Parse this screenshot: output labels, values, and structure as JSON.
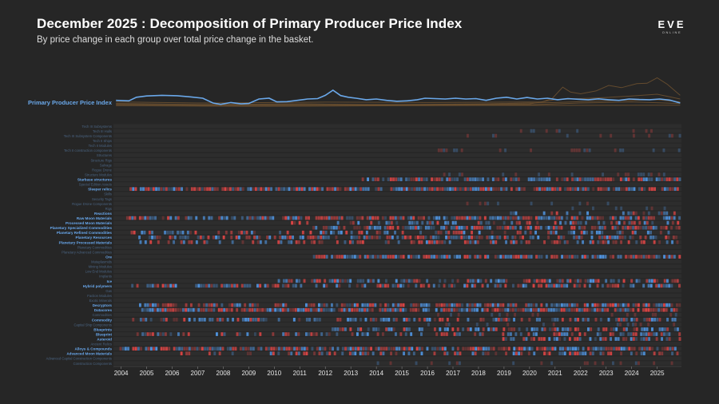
{
  "header": {
    "title": "December 2025 : Decomposition of Primary Producer Price Index",
    "subtitle": "By price change in each group over total price change in the basket."
  },
  "logo": {
    "text": "EVE",
    "subtext": "ONLINE"
  },
  "colors": {
    "background": "#262626",
    "index_line": "#6aa8ea",
    "bg_series": "#6b5030",
    "positive": "#4f93de",
    "negative": "#d94444",
    "row_label": "#4a6482",
    "row_label_strong": "#6aaaf0"
  },
  "chart_data": {
    "type": "line+heatmap",
    "title": "December 2025 : Decomposition of Primary Producer Price Index",
    "subtitle": "By price change in each group over total price change in the basket.",
    "index_series_name": "Primary Producer Price Index",
    "x_range": [
      2003.7,
      2025.95
    ],
    "x_ticks": [
      "2004",
      "2005",
      "2006",
      "2007",
      "2008",
      "2009",
      "2010",
      "2011",
      "2012",
      "2013",
      "2014",
      "2015",
      "2016",
      "2017",
      "2018",
      "2019",
      "2020",
      "2021",
      "2022",
      "2023",
      "2024",
      "2025"
    ],
    "index_line": [
      [
        2003.8,
        0.52
      ],
      [
        2004.3,
        0.5
      ],
      [
        2004.6,
        0.66
      ],
      [
        2005.0,
        0.72
      ],
      [
        2005.6,
        0.75
      ],
      [
        2006.2,
        0.73
      ],
      [
        2006.7,
        0.68
      ],
      [
        2007.2,
        0.62
      ],
      [
        2007.6,
        0.4
      ],
      [
        2007.9,
        0.34
      ],
      [
        2008.3,
        0.42
      ],
      [
        2008.7,
        0.36
      ],
      [
        2009.0,
        0.38
      ],
      [
        2009.4,
        0.58
      ],
      [
        2009.8,
        0.62
      ],
      [
        2010.1,
        0.45
      ],
      [
        2010.5,
        0.46
      ],
      [
        2010.9,
        0.52
      ],
      [
        2011.3,
        0.58
      ],
      [
        2011.7,
        0.6
      ],
      [
        2012.0,
        0.75
      ],
      [
        2012.3,
        0.98
      ],
      [
        2012.6,
        0.74
      ],
      [
        2012.9,
        0.66
      ],
      [
        2013.2,
        0.62
      ],
      [
        2013.6,
        0.55
      ],
      [
        2014.0,
        0.58
      ],
      [
        2014.4,
        0.52
      ],
      [
        2014.8,
        0.48
      ],
      [
        2015.2,
        0.5
      ],
      [
        2015.6,
        0.55
      ],
      [
        2015.9,
        0.62
      ],
      [
        2016.3,
        0.6
      ],
      [
        2016.7,
        0.58
      ],
      [
        2017.1,
        0.62
      ],
      [
        2017.5,
        0.58
      ],
      [
        2017.9,
        0.6
      ],
      [
        2018.3,
        0.52
      ],
      [
        2018.7,
        0.62
      ],
      [
        2019.1,
        0.66
      ],
      [
        2019.5,
        0.58
      ],
      [
        2019.9,
        0.65
      ],
      [
        2020.3,
        0.58
      ],
      [
        2020.7,
        0.62
      ],
      [
        2021.1,
        0.55
      ],
      [
        2021.5,
        0.6
      ],
      [
        2021.9,
        0.57
      ],
      [
        2022.3,
        0.55
      ],
      [
        2022.7,
        0.59
      ],
      [
        2023.1,
        0.55
      ],
      [
        2023.5,
        0.52
      ],
      [
        2023.9,
        0.58
      ],
      [
        2024.3,
        0.56
      ],
      [
        2024.7,
        0.55
      ],
      [
        2025.1,
        0.58
      ],
      [
        2025.5,
        0.53
      ],
      [
        2025.9,
        0.4
      ]
    ],
    "background_lines": [
      [
        [
          2003.8,
          0.45
        ],
        [
          2007.0,
          0.4
        ],
        [
          2012.0,
          0.44
        ],
        [
          2016.0,
          0.42
        ],
        [
          2020.5,
          0.45
        ],
        [
          2020.9,
          0.62
        ],
        [
          2021.3,
          1.12
        ],
        [
          2021.6,
          0.9
        ],
        [
          2022.0,
          0.82
        ],
        [
          2022.6,
          0.95
        ],
        [
          2023.1,
          1.2
        ],
        [
          2023.6,
          1.1
        ],
        [
          2024.2,
          1.28
        ],
        [
          2024.6,
          1.3
        ],
        [
          2025.0,
          1.55
        ],
        [
          2025.4,
          1.25
        ],
        [
          2025.9,
          0.75
        ]
      ],
      [
        [
          2003.8,
          0.35
        ],
        [
          2008.0,
          0.32
        ],
        [
          2012.0,
          0.34
        ],
        [
          2016.0,
          0.33
        ],
        [
          2020.0,
          0.36
        ],
        [
          2021.0,
          0.55
        ],
        [
          2022.0,
          0.6
        ],
        [
          2023.0,
          0.65
        ],
        [
          2024.0,
          0.72
        ],
        [
          2025.0,
          0.8
        ],
        [
          2025.9,
          0.58
        ]
      ],
      [
        [
          2003.8,
          0.3
        ],
        [
          2010.0,
          0.28
        ],
        [
          2015.0,
          0.3
        ],
        [
          2020.0,
          0.32
        ],
        [
          2022.0,
          0.4
        ],
        [
          2024.0,
          0.45
        ],
        [
          2025.9,
          0.38
        ]
      ],
      [
        [
          2003.8,
          0.38
        ],
        [
          2007.0,
          0.33
        ],
        [
          2011.0,
          0.36
        ],
        [
          2014.0,
          0.32
        ],
        [
          2018.0,
          0.36
        ],
        [
          2021.0,
          0.42
        ],
        [
          2023.0,
          0.5
        ],
        [
          2025.0,
          0.55
        ],
        [
          2025.9,
          0.45
        ]
      ],
      [
        [
          2003.8,
          0.28
        ],
        [
          2009.0,
          0.25
        ],
        [
          2013.0,
          0.27
        ],
        [
          2019.0,
          0.29
        ],
        [
          2025.9,
          0.3
        ]
      ]
    ],
    "rows": [
      {
        "name": "Tech III Subsystems",
        "strong": false
      },
      {
        "name": "Tech III Hulls",
        "strong": false
      },
      {
        "name": "Tech III Subsystem Components",
        "strong": false
      },
      {
        "name": "Tech II Ships",
        "strong": false
      },
      {
        "name": "Tech II Modules",
        "strong": false
      },
      {
        "name": "Tech II construction components",
        "strong": false
      },
      {
        "name": "Structures",
        "strong": false
      },
      {
        "name": "Structure Rigs",
        "strong": false
      },
      {
        "name": "Salvage",
        "strong": false
      },
      {
        "name": "Rogue Drone",
        "strong": false
      },
      {
        "name": "Structure Modules",
        "strong": false
      },
      {
        "name": "Starbase structures",
        "strong": true
      },
      {
        "name": "Special Edition Assets",
        "strong": false
      },
      {
        "name": "Sleeper relics",
        "strong": true
      },
      {
        "name": "Skills",
        "strong": false
      },
      {
        "name": "Security Tags",
        "strong": false
      },
      {
        "name": "Rogue Drone Components",
        "strong": false
      },
      {
        "name": "Rigs",
        "strong": false
      },
      {
        "name": "Reactions",
        "strong": true
      },
      {
        "name": "Raw Moon Materials",
        "strong": true
      },
      {
        "name": "Processed Moon Materials",
        "strong": true
      },
      {
        "name": "Planetary Specialized Commodities",
        "strong": true
      },
      {
        "name": "Planetary Refined Commodities",
        "strong": true
      },
      {
        "name": "Planetary Resources",
        "strong": true
      },
      {
        "name": "Planetary Processed Materials",
        "strong": true
      },
      {
        "name": "Planetary Commodities",
        "strong": false
      },
      {
        "name": "Planetary Advanced Commodities",
        "strong": false
      },
      {
        "name": "Ore",
        "strong": true
      },
      {
        "name": "Mutaplasmids",
        "strong": false
      },
      {
        "name": "Mining Modules",
        "strong": false
      },
      {
        "name": "Low End Modules",
        "strong": false
      },
      {
        "name": "Implants",
        "strong": false
      },
      {
        "name": "Ice",
        "strong": true
      },
      {
        "name": "Hybrid polymers",
        "strong": true
      },
      {
        "name": "Gas",
        "strong": false
      },
      {
        "name": "Faction Modules",
        "strong": false
      },
      {
        "name": "Exotic Minerals",
        "strong": false
      },
      {
        "name": "Decryptors",
        "strong": true
      },
      {
        "name": "Datacores",
        "strong": true
      },
      {
        "name": "Commodities",
        "strong": false
      },
      {
        "name": "Commodity",
        "strong": true
      },
      {
        "name": "Capital Ship Components",
        "strong": false
      },
      {
        "name": "Blueprints",
        "strong": true
      },
      {
        "name": "Blueprint",
        "strong": true
      },
      {
        "name": "Asteroid",
        "strong": true
      },
      {
        "name": "Ancient Relics",
        "strong": false
      },
      {
        "name": "Alloys & Compounds",
        "strong": true
      },
      {
        "name": "Advanced Moon Materials",
        "strong": true
      },
      {
        "name": "Advanced Capital Construction Components",
        "strong": false
      },
      {
        "name": "Construction Components",
        "strong": false
      }
    ]
  }
}
